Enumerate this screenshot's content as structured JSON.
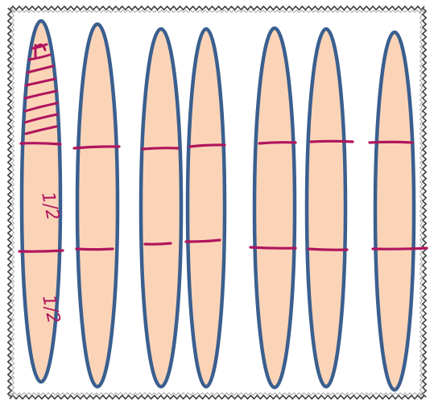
{
  "diagram": {
    "colors": {
      "fill": "#fbd4b8",
      "outline": "#3a5f8f",
      "marker": "#b0155e",
      "frame": "#404040"
    },
    "annotations": [
      {
        "text": "1/2"
      },
      {
        "text": "1/2"
      }
    ],
    "strips": [
      {
        "name": "strip-1",
        "cuts": 2,
        "shaded_parts": 1
      },
      {
        "name": "strip-2",
        "cuts": 2,
        "shaded_parts": 0
      },
      {
        "name": "strip-3",
        "cuts": 2,
        "shaded_parts": 0
      },
      {
        "name": "strip-4",
        "cuts": 2,
        "shaded_parts": 0
      },
      {
        "name": "strip-5",
        "cuts": 2,
        "shaded_parts": 0
      },
      {
        "name": "strip-6",
        "cuts": 2,
        "shaded_parts": 0
      },
      {
        "name": "strip-7",
        "cuts": 2,
        "shaded_parts": 0
      }
    ]
  }
}
